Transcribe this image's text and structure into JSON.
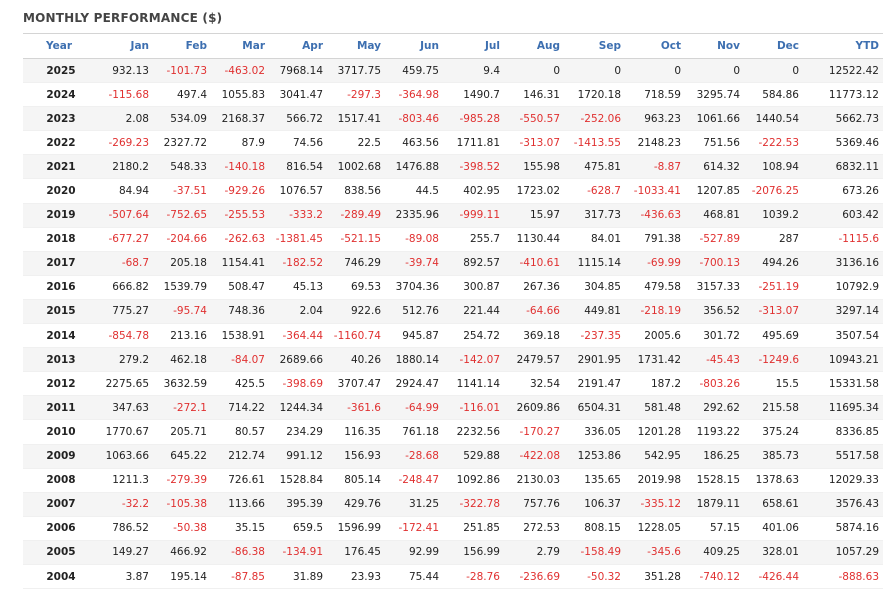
{
  "title": "MONTHLY PERFORMANCE ($)",
  "colors": {
    "negative": "#e03030",
    "header": "#3d6fb0",
    "stripe": "#f5f5f5"
  },
  "columns": [
    "Year",
    "Jan",
    "Feb",
    "Mar",
    "Apr",
    "May",
    "Jun",
    "Jul",
    "Aug",
    "Sep",
    "Oct",
    "Nov",
    "Dec",
    "YTD"
  ],
  "rows": [
    {
      "year": "2025",
      "values": [
        "932.13",
        "-101.73",
        "-463.02",
        "7968.14",
        "3717.75",
        "459.75",
        "9.4",
        "0",
        "0",
        "0",
        "0",
        "0",
        "12522.42"
      ]
    },
    {
      "year": "2024",
      "values": [
        "-115.68",
        "497.4",
        "1055.83",
        "3041.47",
        "-297.3",
        "-364.98",
        "1490.7",
        "146.31",
        "1720.18",
        "718.59",
        "3295.74",
        "584.86",
        "11773.12"
      ]
    },
    {
      "year": "2023",
      "values": [
        "2.08",
        "534.09",
        "2168.37",
        "566.72",
        "1517.41",
        "-803.46",
        "-985.28",
        "-550.57",
        "-252.06",
        "963.23",
        "1061.66",
        "1440.54",
        "5662.73"
      ]
    },
    {
      "year": "2022",
      "values": [
        "-269.23",
        "2327.72",
        "87.9",
        "74.56",
        "22.5",
        "463.56",
        "1711.81",
        "-313.07",
        "-1413.55",
        "2148.23",
        "751.56",
        "-222.53",
        "5369.46"
      ]
    },
    {
      "year": "2021",
      "values": [
        "2180.2",
        "548.33",
        "-140.18",
        "816.54",
        "1002.68",
        "1476.88",
        "-398.52",
        "155.98",
        "475.81",
        "-8.87",
        "614.32",
        "108.94",
        "6832.11"
      ]
    },
    {
      "year": "2020",
      "values": [
        "84.94",
        "-37.51",
        "-929.26",
        "1076.57",
        "838.56",
        "44.5",
        "402.95",
        "1723.02",
        "-628.7",
        "-1033.41",
        "1207.85",
        "-2076.25",
        "673.26"
      ]
    },
    {
      "year": "2019",
      "values": [
        "-507.64",
        "-752.65",
        "-255.53",
        "-333.2",
        "-289.49",
        "2335.96",
        "-999.11",
        "15.97",
        "317.73",
        "-436.63",
        "468.81",
        "1039.2",
        "603.42"
      ]
    },
    {
      "year": "2018",
      "values": [
        "-677.27",
        "-204.66",
        "-262.63",
        "-1381.45",
        "-521.15",
        "-89.08",
        "255.7",
        "1130.44",
        "84.01",
        "791.38",
        "-527.89",
        "287",
        "-1115.6"
      ]
    },
    {
      "year": "2017",
      "values": [
        "-68.7",
        "205.18",
        "1154.41",
        "-182.52",
        "746.29",
        "-39.74",
        "892.57",
        "-410.61",
        "1115.14",
        "-69.99",
        "-700.13",
        "494.26",
        "3136.16"
      ]
    },
    {
      "year": "2016",
      "values": [
        "666.82",
        "1539.79",
        "508.47",
        "45.13",
        "69.53",
        "3704.36",
        "300.87",
        "267.36",
        "304.85",
        "479.58",
        "3157.33",
        "-251.19",
        "10792.9"
      ]
    },
    {
      "year": "2015",
      "values": [
        "775.27",
        "-95.74",
        "748.36",
        "2.04",
        "922.6",
        "512.76",
        "221.44",
        "-64.66",
        "449.81",
        "-218.19",
        "356.52",
        "-313.07",
        "3297.14"
      ]
    },
    {
      "year": "2014",
      "values": [
        "-854.78",
        "213.16",
        "1538.91",
        "-364.44",
        "-1160.74",
        "945.87",
        "254.72",
        "369.18",
        "-237.35",
        "2005.6",
        "301.72",
        "495.69",
        "3507.54"
      ]
    },
    {
      "year": "2013",
      "values": [
        "279.2",
        "462.18",
        "-84.07",
        "2689.66",
        "40.26",
        "1880.14",
        "-142.07",
        "2479.57",
        "2901.95",
        "1731.42",
        "-45.43",
        "-1249.6",
        "10943.21"
      ]
    },
    {
      "year": "2012",
      "values": [
        "2275.65",
        "3632.59",
        "425.5",
        "-398.69",
        "3707.47",
        "2924.47",
        "1141.14",
        "32.54",
        "2191.47",
        "187.2",
        "-803.26",
        "15.5",
        "15331.58"
      ]
    },
    {
      "year": "2011",
      "values": [
        "347.63",
        "-272.1",
        "714.22",
        "1244.34",
        "-361.6",
        "-64.99",
        "-116.01",
        "2609.86",
        "6504.31",
        "581.48",
        "292.62",
        "215.58",
        "11695.34"
      ]
    },
    {
      "year": "2010",
      "values": [
        "1770.67",
        "205.71",
        "80.57",
        "234.29",
        "116.35",
        "761.18",
        "2232.56",
        "-170.27",
        "336.05",
        "1201.28",
        "1193.22",
        "375.24",
        "8336.85"
      ]
    },
    {
      "year": "2009",
      "values": [
        "1063.66",
        "645.22",
        "212.74",
        "991.12",
        "156.93",
        "-28.68",
        "529.88",
        "-422.08",
        "1253.86",
        "542.95",
        "186.25",
        "385.73",
        "5517.58"
      ]
    },
    {
      "year": "2008",
      "values": [
        "1211.3",
        "-279.39",
        "726.61",
        "1528.84",
        "805.14",
        "-248.47",
        "1092.86",
        "2130.03",
        "135.65",
        "2019.98",
        "1528.15",
        "1378.63",
        "12029.33"
      ]
    },
    {
      "year": "2007",
      "values": [
        "-32.2",
        "-105.38",
        "113.66",
        "395.39",
        "429.76",
        "31.25",
        "-322.78",
        "757.76",
        "106.37",
        "-335.12",
        "1879.11",
        "658.61",
        "3576.43"
      ]
    },
    {
      "year": "2006",
      "values": [
        "786.52",
        "-50.38",
        "35.15",
        "659.5",
        "1596.99",
        "-172.41",
        "251.85",
        "272.53",
        "808.15",
        "1228.05",
        "57.15",
        "401.06",
        "5874.16"
      ]
    },
    {
      "year": "2005",
      "values": [
        "149.27",
        "466.92",
        "-86.38",
        "-134.91",
        "176.45",
        "92.99",
        "156.99",
        "2.79",
        "-158.49",
        "-345.6",
        "409.25",
        "328.01",
        "1057.29"
      ]
    },
    {
      "year": "2004",
      "values": [
        "3.87",
        "195.14",
        "-87.85",
        "31.89",
        "23.93",
        "75.44",
        "-28.76",
        "-236.69",
        "-50.32",
        "351.28",
        "-740.12",
        "-426.44",
        "-888.63"
      ]
    }
  ]
}
